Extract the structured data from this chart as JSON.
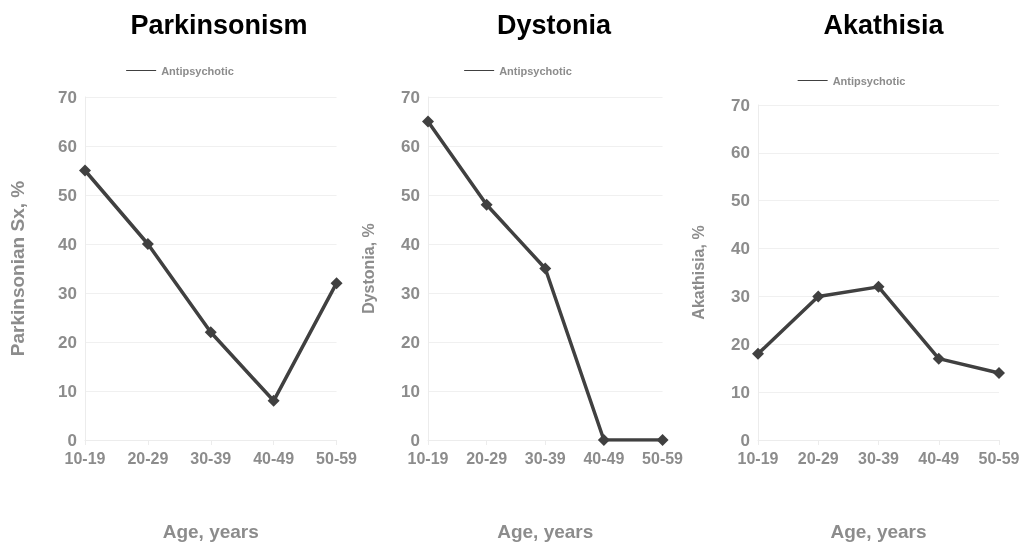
{
  "chart_data": [
    {
      "type": "line",
      "title": "Parkinsonism",
      "xlabel": "Age, years",
      "ylabel": "Parkinsonian Sx, %",
      "categories": [
        "10-19",
        "20-29",
        "30-39",
        "40-49",
        "50-59"
      ],
      "series": [
        {
          "name": "Antipsychotic",
          "color": "#404040",
          "values": [
            55,
            40,
            22,
            8,
            32
          ]
        }
      ],
      "ylim": [
        0,
        70
      ],
      "yticks": [
        0,
        10,
        20,
        30,
        40,
        50,
        60,
        70
      ],
      "grid": "y",
      "legend": "top",
      "marker": "diamond",
      "line_style": "solid"
    },
    {
      "type": "line",
      "title": "Dystonia",
      "xlabel": "Age, years",
      "ylabel": "Dystonia, %",
      "categories": [
        "10-19",
        "20-29",
        "30-39",
        "40-49",
        "50-59"
      ],
      "series": [
        {
          "name": "Antipsychotic",
          "color": "#404040",
          "values": [
            65,
            48,
            35,
            0,
            0
          ]
        }
      ],
      "ylim": [
        0,
        70
      ],
      "yticks": [
        0,
        10,
        20,
        30,
        40,
        50,
        60,
        70
      ],
      "grid": "y",
      "legend": "top",
      "marker": "diamond",
      "line_style": "solid"
    },
    {
      "type": "line",
      "title": "Akathisia",
      "xlabel": "Age, years",
      "ylabel": "Akathisia, %",
      "categories": [
        "10-19",
        "20-29",
        "30-39",
        "40-49",
        "50-59"
      ],
      "series": [
        {
          "name": "Antipsychotic",
          "color": "#404040",
          "values": [
            18,
            30,
            32,
            17,
            14
          ]
        }
      ],
      "ylim": [
        0,
        70
      ],
      "yticks": [
        0,
        10,
        20,
        30,
        40,
        50,
        60,
        70
      ],
      "grid": "y",
      "legend": "top",
      "marker": "diamond",
      "line_style": "solid"
    }
  ]
}
